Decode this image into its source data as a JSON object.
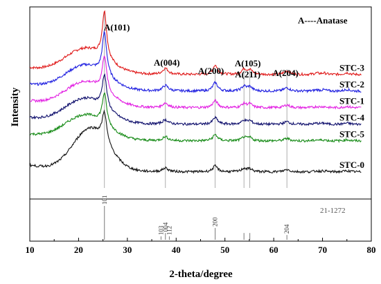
{
  "chart_data": {
    "type": "line",
    "xlabel": "2-theta/degree",
    "ylabel": "Intensity",
    "xlim": [
      10,
      80
    ],
    "xticks": [
      10,
      20,
      30,
      40,
      50,
      60,
      70,
      80
    ],
    "legend_note": "A----Anatase",
    "grid": false,
    "series": [
      {
        "name": "STC-3",
        "color": "#e01b1b",
        "baseline": 100,
        "peak101": 42
      },
      {
        "name": "STC-2",
        "color": "#1f1fe0",
        "baseline": 85,
        "peak101": 38
      },
      {
        "name": "STC-1",
        "color": "#e21ee2",
        "baseline": 70,
        "peak101": 32
      },
      {
        "name": "STC-4",
        "color": "#0d0d6b",
        "baseline": 55,
        "peak101": 30
      },
      {
        "name": "STC-5",
        "color": "#158a15",
        "baseline": 40,
        "peak101": 28
      },
      {
        "name": "STC-0",
        "color": "#111111",
        "baseline": 12,
        "peak101": 26
      }
    ],
    "peak_annotations": [
      {
        "label": "A(101)",
        "x": 25.3
      },
      {
        "label": "A(004)",
        "x": 37.8
      },
      {
        "label": "A(200)",
        "x": 48.0
      },
      {
        "label": "A(105)",
        "x": 53.9
      },
      {
        "label": "A(211)",
        "x": 55.1
      },
      {
        "label": "A(204)",
        "x": 62.7
      }
    ],
    "reference": {
      "card": "21-1272",
      "lines": [
        {
          "x": 25.3,
          "rel": 1.0,
          "label": "101"
        },
        {
          "x": 36.9,
          "rel": 0.1,
          "label": "103"
        },
        {
          "x": 37.8,
          "rel": 0.2,
          "label": "004"
        },
        {
          "x": 38.6,
          "rel": 0.1,
          "label": "112"
        },
        {
          "x": 48.0,
          "rel": 0.35,
          "label": "200"
        },
        {
          "x": 53.9,
          "rel": 0.2,
          "label": ""
        },
        {
          "x": 55.1,
          "rel": 0.2,
          "label": ""
        },
        {
          "x": 62.7,
          "rel": 0.14,
          "label": "204"
        }
      ]
    }
  }
}
